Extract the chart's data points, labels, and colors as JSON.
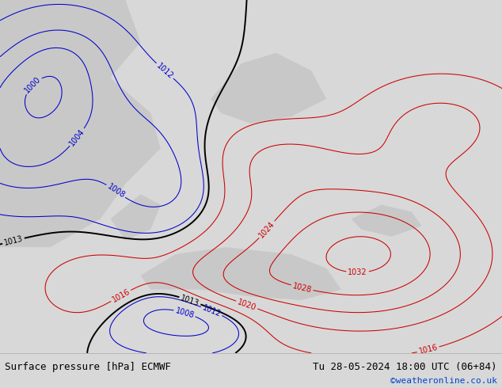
{
  "title_left": "Surface pressure [hPa] ECMWF",
  "title_right": "Tu 28-05-2024 18:00 UTC (06+84)",
  "credit": "©weatheronline.co.uk",
  "credit_color": "#0044cc",
  "land_color": "#b8d8a0",
  "sea_color": "#c8c8c8",
  "footer_bg": "#d8d8d8",
  "low_pressure_color": "#0000cc",
  "high_pressure_color": "#cc0000",
  "front_color": "#000000",
  "label_fontsize": 7,
  "footer_fontsize": 9
}
